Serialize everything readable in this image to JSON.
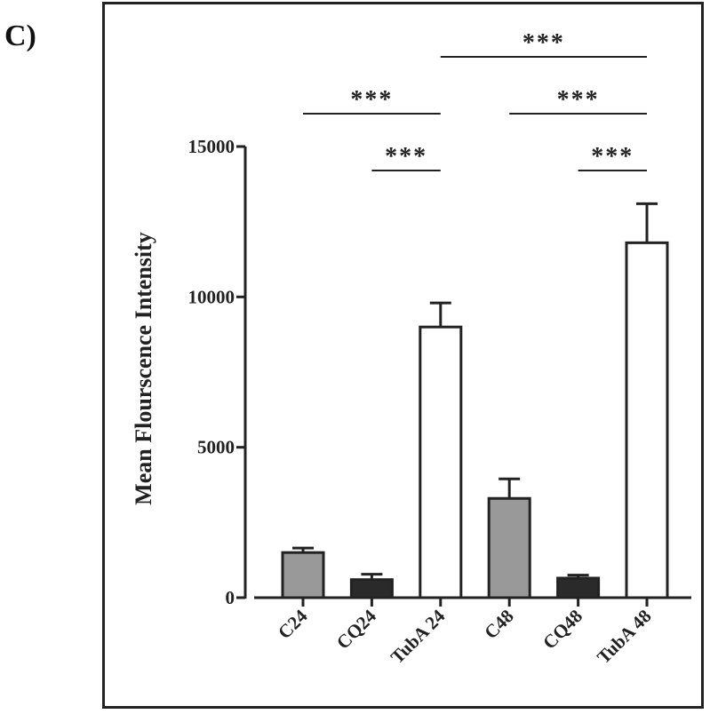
{
  "panel_label": "C)",
  "colors": {
    "control": "#999999",
    "cq": "#2a2a2a",
    "tuba": "#ffffff",
    "stroke": "#222222"
  },
  "chart_data": {
    "type": "bar",
    "title": "",
    "xlabel": "",
    "ylabel": "Mean Flourscence Intensity",
    "ylim": [
      0,
      15000
    ],
    "yticks": [
      0,
      5000,
      10000,
      15000
    ],
    "ytick_labels": [
      "0",
      "5000",
      "10000",
      "15000"
    ],
    "categories": [
      "C24",
      "CQ24",
      "TubA 24",
      "C48",
      "CQ48",
      "TubA 48"
    ],
    "values": [
      1500,
      600,
      9000,
      3300,
      650,
      11800
    ],
    "errors": [
      150,
      180,
      800,
      650,
      100,
      1300
    ],
    "bar_colors": [
      "control",
      "cq",
      "tuba",
      "control",
      "cq",
      "tuba"
    ],
    "significance": [
      {
        "from": "C24",
        "to": "TubA 24",
        "label": "***"
      },
      {
        "from": "CQ24",
        "to": "TubA 24",
        "label": "***"
      },
      {
        "from": "TubA 24",
        "to": "TubA 48",
        "label": "***"
      },
      {
        "from": "C48",
        "to": "TubA 48",
        "label": "***"
      },
      {
        "from": "CQ48",
        "to": "TubA 48",
        "label": "***"
      }
    ]
  }
}
